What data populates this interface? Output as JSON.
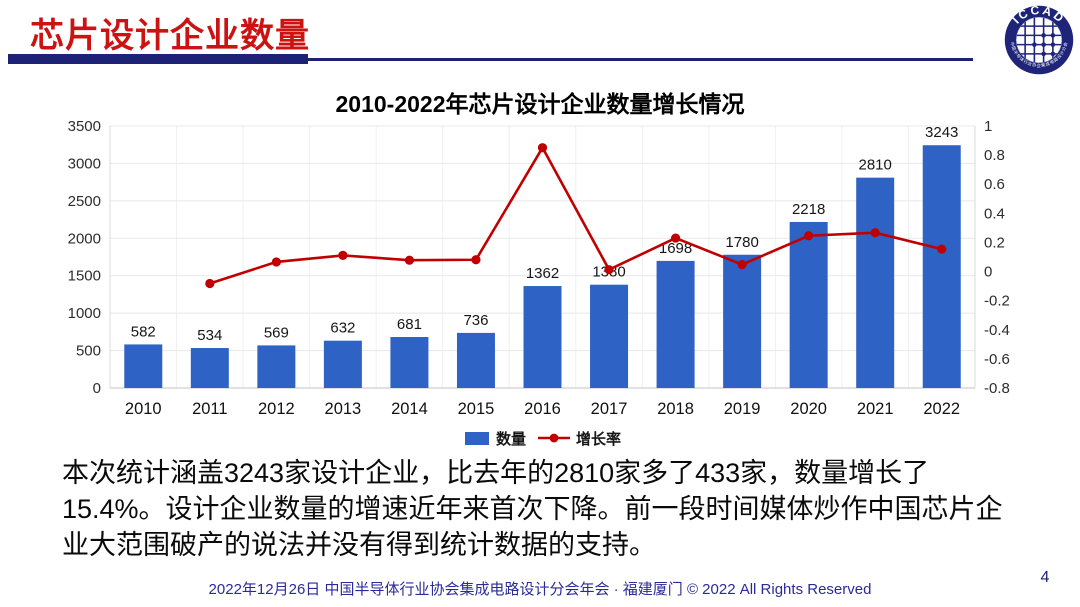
{
  "header": {
    "title": "芯片设计企业数量",
    "logo": {
      "text": "ICCAD",
      "ring_text": "中国半导体行业协会集成电路设计分会",
      "color": "#1e2478"
    }
  },
  "colors": {
    "title_red": "#ce1111",
    "rule_navy": "#1e2277",
    "bar_blue": "#2e63c5",
    "line_red": "#c00000",
    "footer_navy": "#2a2a99"
  },
  "chart_data": {
    "type": "bar",
    "title": "2010-2022年芯片设计企业数量增长情况",
    "categories": [
      "2010",
      "2011",
      "2012",
      "2013",
      "2014",
      "2015",
      "2016",
      "2017",
      "2018",
      "2019",
      "2020",
      "2021",
      "2022"
    ],
    "series": [
      {
        "name": "数量",
        "type": "bar",
        "axis": "left",
        "color": "#2e63c5",
        "values": [
          582,
          534,
          569,
          632,
          681,
          736,
          1362,
          1380,
          1698,
          1780,
          2218,
          2810,
          3243
        ]
      },
      {
        "name": "增长率",
        "type": "line",
        "axis": "right",
        "color": "#c00000",
        "values": [
          null,
          -0.082,
          0.066,
          0.111,
          0.078,
          0.081,
          0.851,
          0.013,
          0.23,
          0.048,
          0.246,
          0.267,
          0.154
        ]
      }
    ],
    "left_axis": {
      "min": 0,
      "max": 3500,
      "tick_labels": [
        "0",
        "500",
        "1000",
        "1500",
        "2000",
        "2500",
        "3000",
        "3500"
      ]
    },
    "right_axis": {
      "min": -0.8,
      "max": 1,
      "tick_labels": [
        "-0.8",
        "-0.6",
        "-0.4",
        "-0.2",
        "0",
        "0.2",
        "0.4",
        "0.6",
        "0.8",
        "1"
      ]
    },
    "legend": {
      "position": "bottom",
      "entries": [
        "数量",
        "增长率"
      ]
    },
    "grid": true
  },
  "summary": {
    "text": "本次统计涵盖3243家设计企业，比去年的2810家多了433家，数量增长了15.4%。设计企业数量的增速近年来首次下降。前一段时间媒体炒作中国芯片企业大范围破产的说法并没有得到统计数据的支持。"
  },
  "footer": {
    "text": "2022年12月26日 中国半导体行业协会集成电路设计分会年会 · 福建厦门 © 2022 All Rights Reserved",
    "page_number": "4"
  }
}
